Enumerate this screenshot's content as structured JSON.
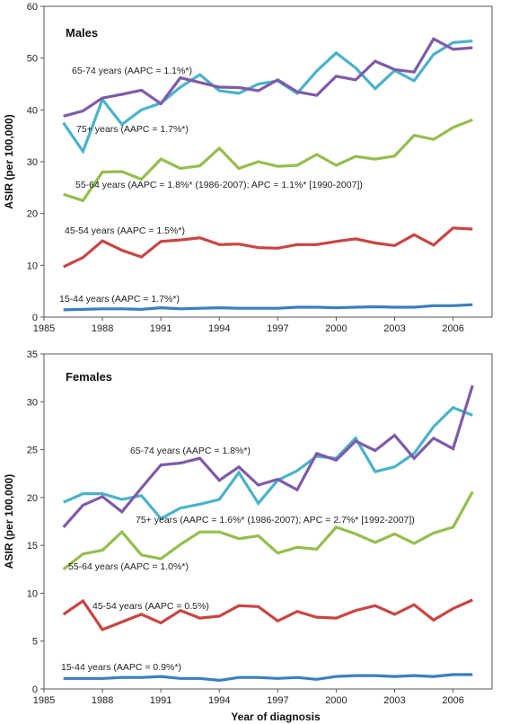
{
  "colors": {
    "15-44": "#3b7fbf",
    "45-54": "#c84543",
    "55-64": "#96bd4e",
    "65-74": "#7e5ba8",
    "75+": "#4bb2c9",
    "axis": "#555555",
    "background": "#ffffff"
  },
  "xlabel": "Year of diagnosis",
  "chart_data": [
    {
      "type": "line",
      "title": "Males",
      "ylabel": "ASIR (per 100,000)",
      "xlim": [
        1985,
        2008
      ],
      "ylim": [
        0,
        60
      ],
      "x_ticks": [
        1985,
        1988,
        1991,
        1994,
        1997,
        2000,
        2003,
        2006
      ],
      "y_ticks": [
        0,
        10,
        20,
        30,
        40,
        50,
        60
      ],
      "x": [
        1986,
        1987,
        1988,
        1989,
        1990,
        1991,
        1992,
        1993,
        1994,
        1995,
        1996,
        1997,
        1998,
        1999,
        2000,
        2001,
        2002,
        2003,
        2004,
        2005,
        2006,
        2007
      ],
      "grid": false,
      "series": [
        {
          "key": "75+",
          "values": [
            37.5,
            32.0,
            42.0,
            37.2,
            40.0,
            41.3,
            44.4,
            46.8,
            43.7,
            43.2,
            45.0,
            45.6,
            43.2,
            47.5,
            51.0,
            48.1,
            44.1,
            47.6,
            45.6,
            50.7,
            53.0,
            53.3
          ]
        },
        {
          "key": "65-74",
          "values": [
            38.8,
            39.8,
            42.3,
            43.0,
            43.8,
            41.2,
            46.2,
            45.3,
            44.4,
            44.3,
            43.7,
            45.8,
            43.5,
            42.8,
            46.5,
            45.8,
            49.4,
            47.8,
            47.3,
            53.7,
            51.7,
            52.0
          ]
        },
        {
          "key": "55-64",
          "values": [
            23.7,
            22.5,
            28.0,
            28.1,
            26.6,
            30.5,
            28.7,
            29.2,
            32.6,
            28.7,
            30.0,
            29.1,
            29.3,
            31.4,
            29.3,
            31.0,
            30.5,
            31.1,
            35.1,
            34.3,
            36.6,
            38.1
          ]
        },
        {
          "key": "45-54",
          "values": [
            9.7,
            11.5,
            14.7,
            12.9,
            11.6,
            14.6,
            14.9,
            15.3,
            14.0,
            14.1,
            13.4,
            13.3,
            14.0,
            14.0,
            14.6,
            15.1,
            14.3,
            13.8,
            15.9,
            13.9,
            17.2,
            17.0
          ]
        },
        {
          "key": "15-44",
          "values": [
            1.4,
            1.5,
            1.6,
            1.6,
            1.5,
            1.8,
            1.6,
            1.7,
            1.8,
            1.7,
            1.7,
            1.7,
            1.9,
            1.9,
            1.8,
            1.9,
            2.0,
            1.9,
            1.9,
            2.2,
            2.2,
            2.4
          ]
        }
      ],
      "annotations": [
        {
          "key": "65-74",
          "text": "65-74 years (AAPC = 1.1%*)"
        },
        {
          "key": "75+",
          "text": "75+ years (AAPC = 1.7%*)"
        },
        {
          "key": "55-64",
          "text": "55-64 years (AAPC = 1.8%* (1986-2007); APC = 1.1%* [1990-2007])"
        },
        {
          "key": "45-54",
          "text": "45-54 years (AAPC = 1.5%*)"
        },
        {
          "key": "15-44",
          "text": "15-44 years (AAPC = 1.7%*)"
        }
      ]
    },
    {
      "type": "line",
      "title": "Females",
      "ylabel": "ASIR (per 100,000)",
      "xlim": [
        1985,
        2008
      ],
      "ylim": [
        0,
        35
      ],
      "x_ticks": [
        1985,
        1988,
        1991,
        1994,
        1997,
        2000,
        2003,
        2006
      ],
      "y_ticks": [
        0,
        5,
        10,
        15,
        20,
        25,
        30,
        35
      ],
      "x": [
        1986,
        1987,
        1988,
        1989,
        1990,
        1991,
        1992,
        1993,
        1994,
        1995,
        1996,
        1997,
        1998,
        1999,
        2000,
        2001,
        2002,
        2003,
        2004,
        2005,
        2006,
        2007
      ],
      "grid": false,
      "series": [
        {
          "key": "75+",
          "values": [
            19.5,
            20.4,
            20.4,
            19.8,
            20.2,
            17.8,
            18.9,
            19.3,
            19.8,
            22.6,
            19.4,
            21.8,
            22.8,
            24.3,
            24.1,
            26.2,
            22.7,
            23.2,
            24.6,
            27.4,
            29.4,
            28.6
          ]
        },
        {
          "key": "65-74",
          "values": [
            16.9,
            19.2,
            20.1,
            18.5,
            21.0,
            23.4,
            23.6,
            24.1,
            21.8,
            23.2,
            21.3,
            21.9,
            20.8,
            24.6,
            23.9,
            25.9,
            24.9,
            26.5,
            24.1,
            26.2,
            25.1,
            31.7
          ]
        },
        {
          "key": "55-64",
          "values": [
            12.5,
            14.1,
            14.5,
            16.4,
            14.0,
            13.6,
            15.1,
            16.4,
            16.4,
            15.7,
            16.0,
            14.2,
            14.8,
            14.6,
            16.9,
            16.2,
            15.3,
            16.2,
            15.2,
            16.3,
            16.9,
            20.6
          ]
        },
        {
          "key": "45-54",
          "values": [
            7.8,
            9.2,
            6.2,
            7.0,
            7.8,
            6.9,
            8.2,
            7.4,
            7.6,
            8.7,
            8.6,
            7.1,
            8.1,
            7.5,
            7.4,
            8.2,
            8.7,
            7.8,
            8.8,
            7.2,
            8.4,
            9.3
          ]
        },
        {
          "key": "15-44",
          "values": [
            1.1,
            1.1,
            1.1,
            1.2,
            1.2,
            1.3,
            1.1,
            1.1,
            0.9,
            1.2,
            1.2,
            1.1,
            1.2,
            1.0,
            1.3,
            1.4,
            1.4,
            1.3,
            1.4,
            1.3,
            1.5,
            1.5
          ]
        }
      ],
      "annotations": [
        {
          "key": "65-74",
          "text": "65-74 years (AAPC = 1.8%*)"
        },
        {
          "key": "75+",
          "text": "75+ years (AAPC = 1.6%* (1986-2007); APC = 2.7%* [1992-2007])"
        },
        {
          "key": "55-64",
          "text": "55-64 years (AAPC = 1.0%*)"
        },
        {
          "key": "45-54",
          "text": "45-54 years (AAPC = 0.5%)"
        },
        {
          "key": "15-44",
          "text": "15-44 years (AAPC = 0.9%*)"
        }
      ]
    }
  ]
}
